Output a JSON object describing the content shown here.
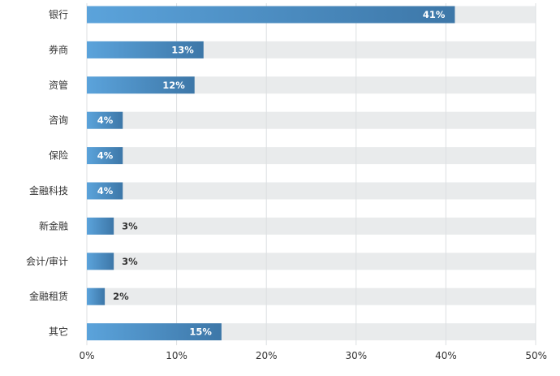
{
  "chart_data": {
    "type": "bar",
    "orientation": "horizontal",
    "categories": [
      "银行",
      "券商",
      "资管",
      "咨询",
      "保险",
      "金融科技",
      "新金融",
      "会计/审计",
      "金融租赁",
      "其它"
    ],
    "values": [
      41,
      13,
      12,
      4,
      4,
      4,
      3,
      3,
      2,
      15
    ],
    "value_labels": [
      "41%",
      "13%",
      "12%",
      "4%",
      "4%",
      "4%",
      "3%",
      "3%",
      "2%",
      "15%"
    ],
    "x_ticks": [
      "0%",
      "10%",
      "20%",
      "30%",
      "40%",
      "50%"
    ],
    "xlim": [
      0,
      50
    ],
    "grid": true,
    "colors": {
      "bar_start": "#5ba3db",
      "bar_end": "#3d77a8",
      "track": "#e9ebec",
      "grid": "#dcdfe2",
      "text": "#333333"
    }
  }
}
